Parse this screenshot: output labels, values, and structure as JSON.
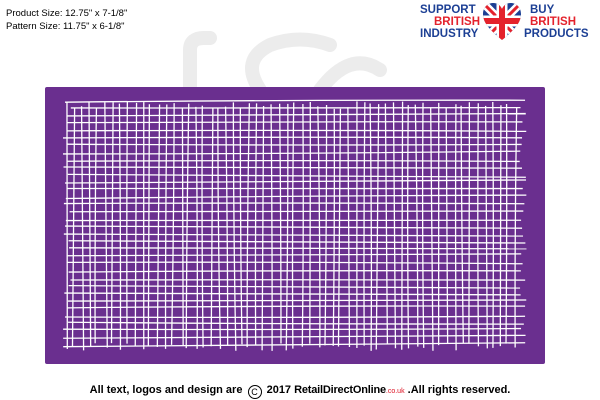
{
  "specs": {
    "product_size": "Product Size: 12.75\" x 7-1/8\"",
    "pattern_size": "Pattern Size: 11.75\" x 6-1/8\""
  },
  "badge": {
    "support": "SUPPORT",
    "british_left": "BRITISH",
    "industry": "INDUSTRY",
    "buy": "BUY",
    "british_right": "BRITISH",
    "products": "PRODUCTS",
    "blue": "#1c3f94",
    "red": "#e4222c"
  },
  "panel": {
    "color": "#6a2f8f",
    "line_color": "#ffffff",
    "icon": "crosshatch-grid-pattern"
  },
  "footer": {
    "prefix": "All text, logos and design are",
    "copyright_symbol": "C",
    "year": "2017",
    "brand": "RetailDirectOnline",
    "brand_suffix": ".co.uk",
    "suffix": ".All rights reserved."
  }
}
